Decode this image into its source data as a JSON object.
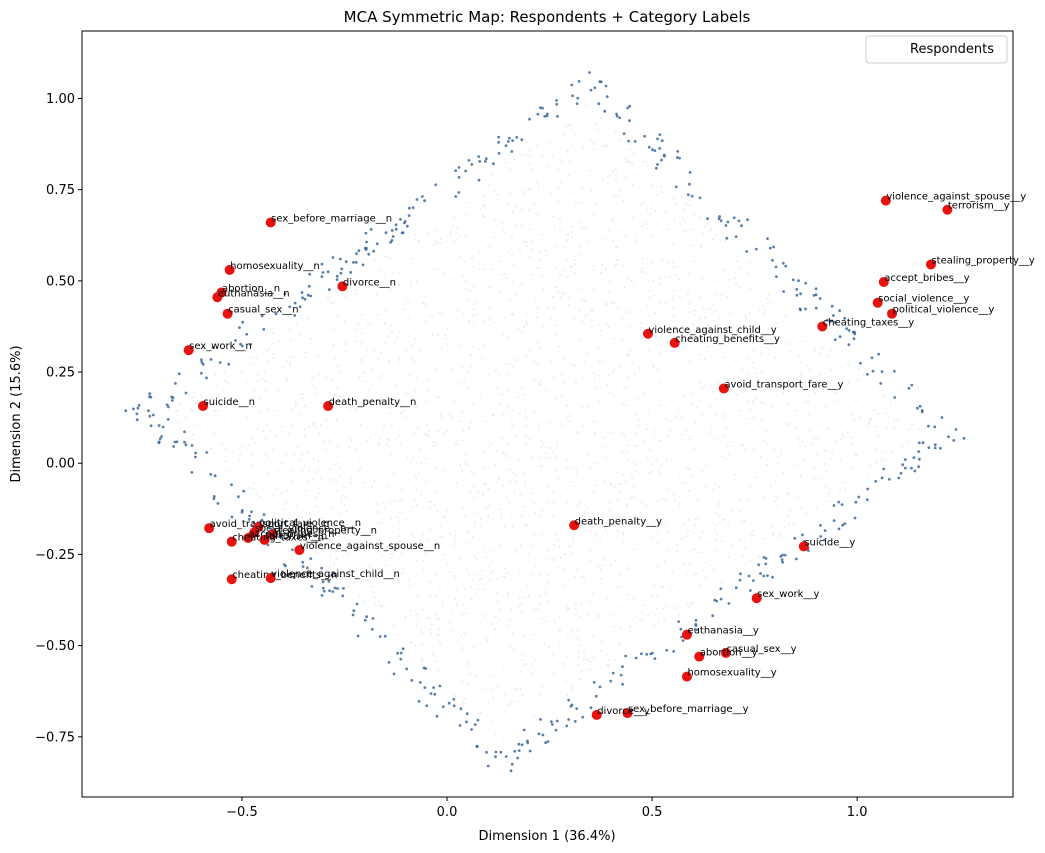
{
  "chart_data": {
    "type": "scatter",
    "title": "MCA Symmetric Map: Respondents + Category Labels",
    "xlabel": "Dimension 1 (36.4%)",
    "ylabel": "Dimension 2 (15.6%)",
    "xlim": [
      -0.89,
      1.38
    ],
    "ylim": [
      -0.915,
      1.185
    ],
    "x_ticks": [
      -0.5,
      0.0,
      0.5,
      1.0
    ],
    "x_tick_labels": [
      "−0.5",
      "0.0",
      "0.5",
      "1.0"
    ],
    "y_ticks": [
      -0.75,
      -0.5,
      -0.25,
      0.0,
      0.25,
      0.5,
      0.75,
      1.0
    ],
    "y_tick_labels": [
      "−0.75",
      "−0.50",
      "−0.25",
      "0.00",
      "0.25",
      "0.50",
      "0.75",
      "1.00"
    ],
    "grid": false,
    "legend": {
      "position": "top-right",
      "entries": [
        "Respondents"
      ]
    },
    "colors": {
      "respondents_light": "#dbe6f1",
      "respondents_dark": "#2f6096",
      "categories": "#e8120f"
    },
    "respondent_cloud": {
      "shape": "diamond",
      "corners": {
        "top": [
          0.43,
          1.09
        ],
        "right": [
          1.27,
          0.05
        ],
        "bottom": [
          0.05,
          -0.87
        ],
        "left": [
          -0.79,
          0.18
        ]
      },
      "approx_count": 9000
    },
    "categories": [
      {
        "label": "violence_against_spouse__y",
        "x": 1.07,
        "y": 0.72
      },
      {
        "label": "terrorism__y",
        "x": 1.22,
        "y": 0.695
      },
      {
        "label": "stealing_property__y",
        "x": 1.18,
        "y": 0.545
      },
      {
        "label": "accept_bribes__y",
        "x": 1.065,
        "y": 0.497
      },
      {
        "label": "social_violence__y",
        "x": 1.05,
        "y": 0.44
      },
      {
        "label": "political_violence__y",
        "x": 1.085,
        "y": 0.41
      },
      {
        "label": "cheating_taxes__y",
        "x": 0.915,
        "y": 0.375
      },
      {
        "label": "violence_against_child__y",
        "x": 0.49,
        "y": 0.355
      },
      {
        "label": "cheating_benefits__y",
        "x": 0.555,
        "y": 0.33
      },
      {
        "label": "avoid_transport_fare__y",
        "x": 0.675,
        "y": 0.205
      },
      {
        "label": "death_penalty__y",
        "x": 0.31,
        "y": -0.17
      },
      {
        "label": "suicide__y",
        "x": 0.87,
        "y": -0.228
      },
      {
        "label": "sex_work__y",
        "x": 0.755,
        "y": -0.37
      },
      {
        "label": "euthanasia__y",
        "x": 0.585,
        "y": -0.47
      },
      {
        "label": "casual_sex__y",
        "x": 0.68,
        "y": -0.52
      },
      {
        "label": "abortion__y",
        "x": 0.615,
        "y": -0.53
      },
      {
        "label": "homosexuality__y",
        "x": 0.585,
        "y": -0.585
      },
      {
        "label": "sex_before_marriage__y",
        "x": 0.44,
        "y": -0.685
      },
      {
        "label": "divorce__y",
        "x": 0.365,
        "y": -0.69
      },
      {
        "label": "sex_before_marriage__n",
        "x": -0.43,
        "y": 0.66
      },
      {
        "label": "homosexuality__n",
        "x": -0.53,
        "y": 0.53
      },
      {
        "label": "divorce__n",
        "x": -0.255,
        "y": 0.485
      },
      {
        "label": "abortion__n",
        "x": -0.55,
        "y": 0.468
      },
      {
        "label": "euthanasia__n",
        "x": -0.56,
        "y": 0.455
      },
      {
        "label": "casual_sex__n",
        "x": -0.535,
        "y": 0.41
      },
      {
        "label": "sex_work__n",
        "x": -0.63,
        "y": 0.31
      },
      {
        "label": "suicide__n",
        "x": -0.595,
        "y": 0.157
      },
      {
        "label": "death_penalty__n",
        "x": -0.29,
        "y": 0.157
      },
      {
        "label": "avoid_transport_fare__n",
        "x": -0.58,
        "y": -0.178
      },
      {
        "label": "political_violence__n",
        "x": -0.46,
        "y": -0.175
      },
      {
        "label": "social_violence__n",
        "x": -0.47,
        "y": -0.19
      },
      {
        "label": "stealing_property__n",
        "x": -0.425,
        "y": -0.195
      },
      {
        "label": "accept_bribes__n",
        "x": -0.485,
        "y": -0.205
      },
      {
        "label": "terrorism__n",
        "x": -0.445,
        "y": -0.21
      },
      {
        "label": "cheating_taxes__n",
        "x": -0.525,
        "y": -0.215
      },
      {
        "label": "violence_against_spouse__n",
        "x": -0.36,
        "y": -0.238
      },
      {
        "label": "cheating_benefits__n",
        "x": -0.525,
        "y": -0.318
      },
      {
        "label": "violence_against_child__n",
        "x": -0.43,
        "y": -0.315
      }
    ]
  }
}
